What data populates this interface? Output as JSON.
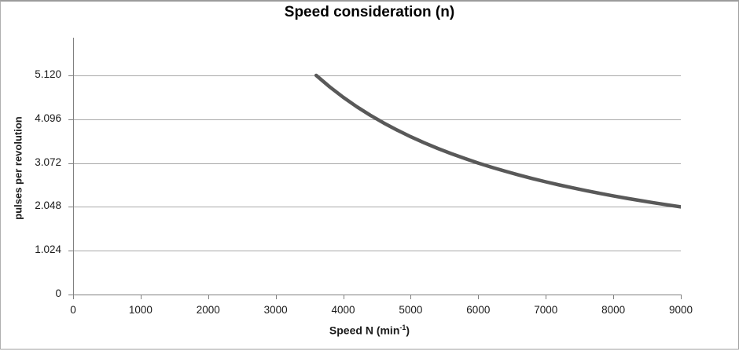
{
  "window": {
    "background": "#ffffff",
    "frame_border_color": "#a0a0a0"
  },
  "chart_data": {
    "type": "line",
    "title": "Speed consideration (n)",
    "ylabel": "pulses per revolution",
    "xlabel": {
      "prefix": "Speed N (min",
      "superscript": "-1",
      "suffix": ")"
    },
    "xlim": [
      0,
      9000
    ],
    "ylim": [
      0,
      6000
    ],
    "grid": "horizontal-only",
    "legend": "none",
    "x_ticks": [
      {
        "value": 0,
        "label": "0"
      },
      {
        "value": 1000,
        "label": "1000"
      },
      {
        "value": 2000,
        "label": "2000"
      },
      {
        "value": 3000,
        "label": "3000"
      },
      {
        "value": 4000,
        "label": "4000"
      },
      {
        "value": 5000,
        "label": "5000"
      },
      {
        "value": 6000,
        "label": "6000"
      },
      {
        "value": 7000,
        "label": "7000"
      },
      {
        "value": 8000,
        "label": "8000"
      },
      {
        "value": 9000,
        "label": "9000"
      }
    ],
    "y_ticks": [
      {
        "value": 0,
        "label": "0"
      },
      {
        "value": 1024,
        "label": "1.024"
      },
      {
        "value": 2048,
        "label": "2.048"
      },
      {
        "value": 3072,
        "label": "3.072"
      },
      {
        "value": 4096,
        "label": "4.096"
      },
      {
        "value": 5120,
        "label": "5.120"
      }
    ],
    "colors": {
      "line": "#595959",
      "gridline": "#a9a9a9",
      "axis": "#808080",
      "tick_text": "#1a1a1a",
      "title_text": "#000000"
    },
    "series": [
      {
        "points": [
          [
            3600,
            5120
          ],
          [
            3800,
            4851
          ],
          [
            4000,
            4608
          ],
          [
            4200,
            4389
          ],
          [
            4400,
            4189
          ],
          [
            4600,
            4007
          ],
          [
            4800,
            3840
          ],
          [
            5000,
            3686
          ],
          [
            5200,
            3545
          ],
          [
            5400,
            3413
          ],
          [
            5600,
            3291
          ],
          [
            5800,
            3178
          ],
          [
            6000,
            3072
          ],
          [
            6200,
            2973
          ],
          [
            6400,
            2880
          ],
          [
            6600,
            2793
          ],
          [
            6800,
            2711
          ],
          [
            7000,
            2633
          ],
          [
            7200,
            2560
          ],
          [
            7400,
            2491
          ],
          [
            7600,
            2425
          ],
          [
            7800,
            2363
          ],
          [
            8000,
            2304
          ],
          [
            8200,
            2248
          ],
          [
            8400,
            2194
          ],
          [
            8600,
            2143
          ],
          [
            8800,
            2095
          ],
          [
            9000,
            2048
          ]
        ]
      }
    ]
  }
}
